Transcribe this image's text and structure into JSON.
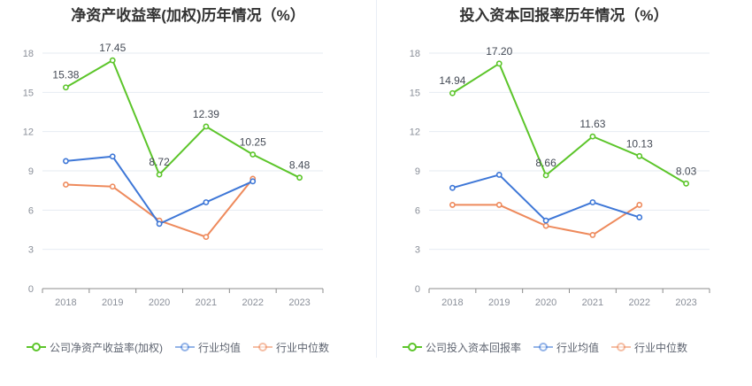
{
  "chart_data": [
    {
      "type": "line",
      "title": "净资产收益率(加权)历年情况（%）",
      "categories": [
        "2018",
        "2019",
        "2020",
        "2021",
        "2022",
        "2023"
      ],
      "yticks": [
        "0",
        "3",
        "6",
        "9",
        "12",
        "15",
        "18"
      ],
      "ylim": [
        0,
        18
      ],
      "grid": true,
      "legend_position": "bottom",
      "series": [
        {
          "name": "公司净资产收益率(加权)",
          "color": "#5cc52a",
          "labelled": true,
          "values": [
            15.38,
            17.45,
            8.72,
            12.39,
            10.25,
            8.48
          ],
          "labels": [
            "15.38",
            "17.45",
            "8.72",
            "12.39",
            "10.25",
            "8.48"
          ]
        },
        {
          "name": "行业均值",
          "color": "#3e77d7",
          "labelled": false,
          "values": [
            9.75,
            10.1,
            4.95,
            6.6,
            8.2,
            null
          ]
        },
        {
          "name": "行业中位数",
          "color": "#ee8a5c",
          "labelled": false,
          "values": [
            7.95,
            7.8,
            5.2,
            3.95,
            8.4,
            null
          ]
        }
      ]
    },
    {
      "type": "line",
      "title": "投入资本回报率历年情况（%）",
      "categories": [
        "2018",
        "2019",
        "2020",
        "2021",
        "2022",
        "2023"
      ],
      "yticks": [
        "0",
        "3",
        "6",
        "9",
        "12",
        "15",
        "18"
      ],
      "ylim": [
        0,
        18
      ],
      "grid": true,
      "legend_position": "bottom",
      "series": [
        {
          "name": "公司投入资本回报率",
          "color": "#5cc52a",
          "labelled": true,
          "values": [
            14.94,
            17.2,
            8.66,
            11.63,
            10.13,
            8.03
          ],
          "labels": [
            "14.94",
            "17.20",
            "8.66",
            "11.63",
            "10.13",
            "8.03"
          ]
        },
        {
          "name": "行业均值",
          "color": "#3e77d7",
          "labelled": false,
          "values": [
            7.7,
            8.7,
            5.2,
            6.6,
            5.45,
            null
          ]
        },
        {
          "name": "行业中位数",
          "color": "#ee8a5c",
          "labelled": false,
          "values": [
            6.4,
            6.4,
            4.8,
            4.1,
            6.4,
            null
          ]
        }
      ]
    }
  ]
}
